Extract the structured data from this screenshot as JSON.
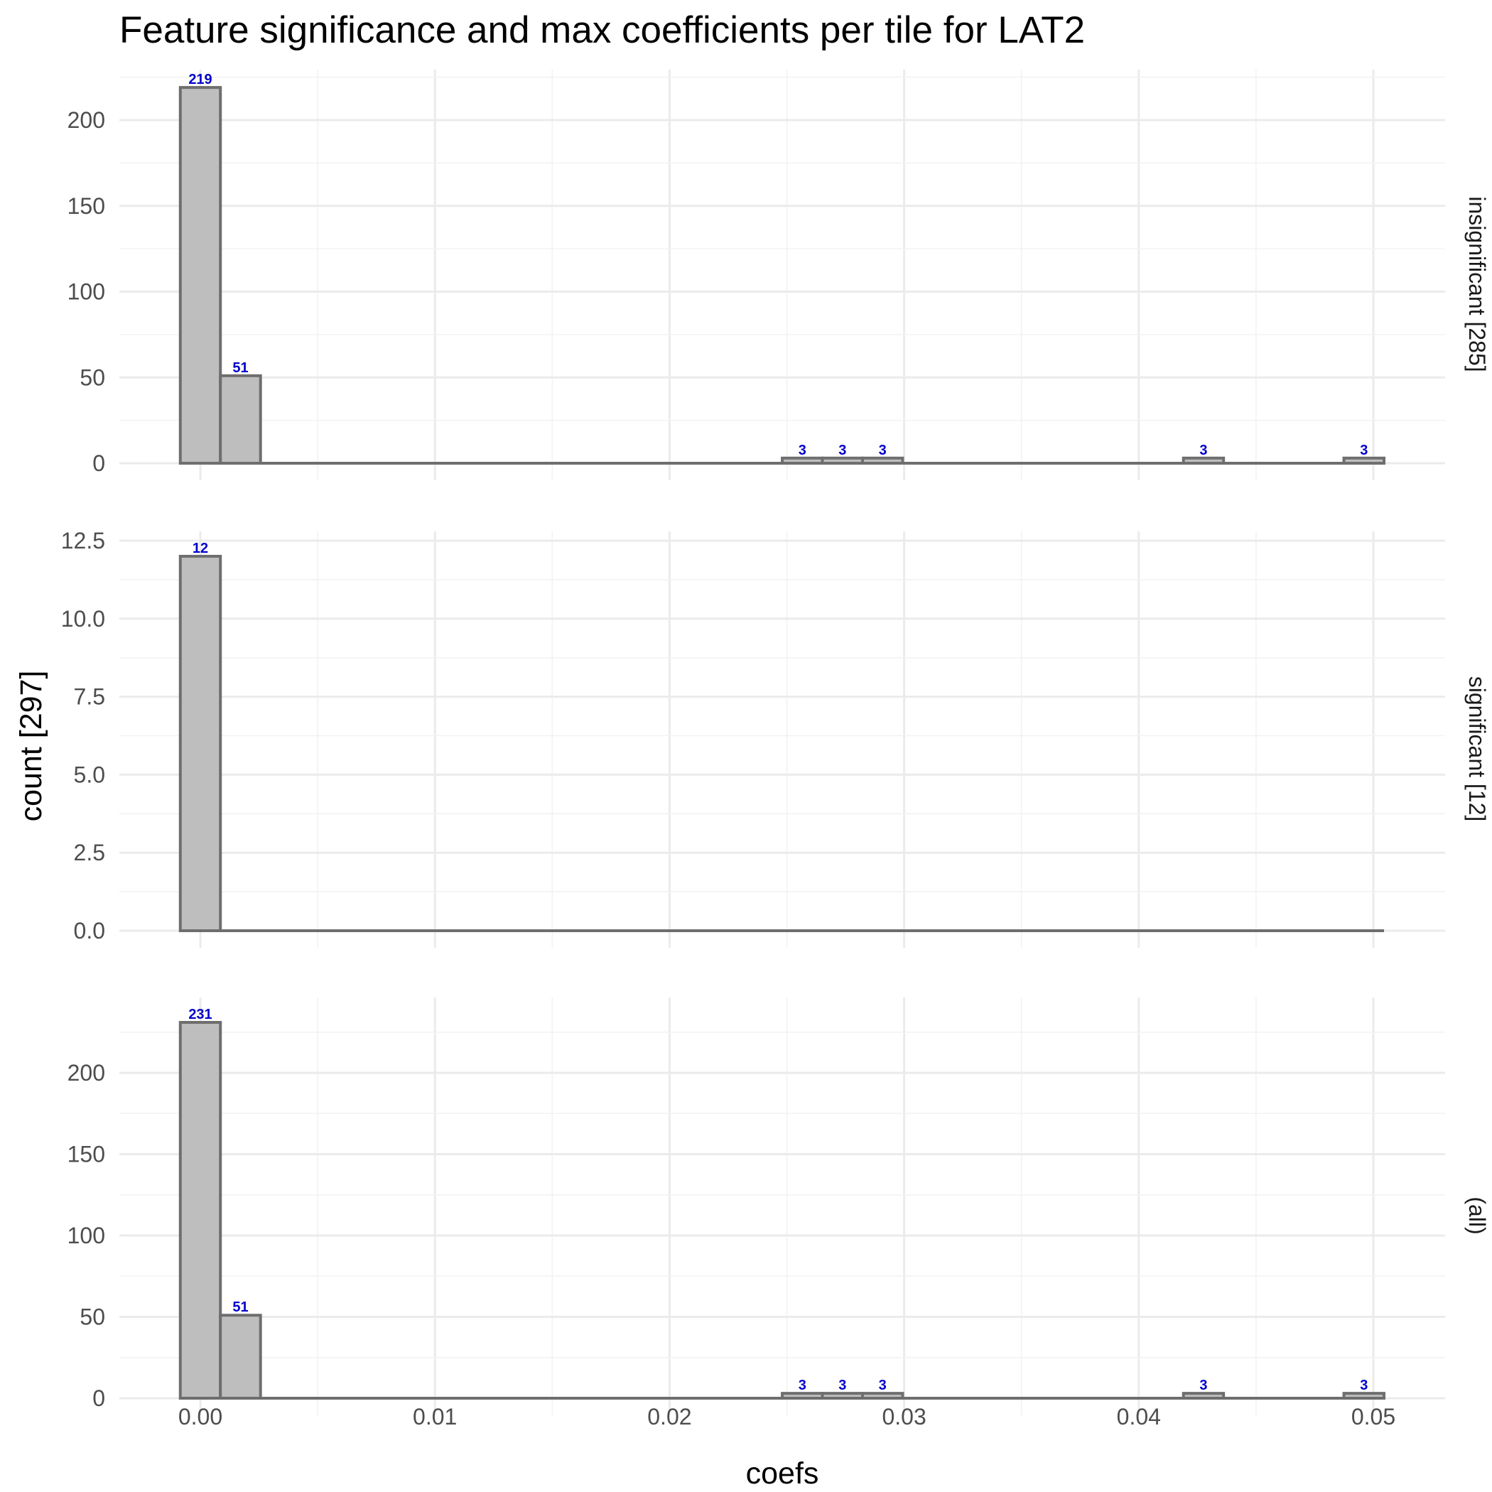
{
  "chart_data": {
    "type": "bar",
    "title": "Feature significance and max coefficients per tile for LAT2",
    "xlabel": "coefs",
    "ylabel": "count [297]",
    "xlim": [
      -0.0034,
      0.0532
    ],
    "x_ticks": [
      "0.00",
      "0.01",
      "0.02",
      "0.03",
      "0.04",
      "0.05"
    ],
    "x_tick_values": [
      0,
      0.01,
      0.02,
      0.03,
      0.04,
      0.05
    ],
    "bin_width": 0.00171,
    "grid": true,
    "panels": [
      {
        "strip_label": "insignificant [285]",
        "ylim": [
          0,
          230
        ],
        "y_ticks": [
          "0",
          "50",
          "100",
          "150",
          "200"
        ],
        "y_tick_values": [
          0,
          50,
          100,
          150,
          200
        ],
        "bins": [
          {
            "x": 0.0,
            "count": 219,
            "label": "219"
          },
          {
            "x": 0.00171,
            "count": 51,
            "label": "51"
          },
          {
            "x": 0.02566,
            "count": 3,
            "label": "3"
          },
          {
            "x": 0.02737,
            "count": 3,
            "label": "3"
          },
          {
            "x": 0.02908,
            "count": 3,
            "label": "3"
          },
          {
            "x": 0.04276,
            "count": 3,
            "label": "3"
          },
          {
            "x": 0.0496,
            "count": 3,
            "label": "3"
          }
        ]
      },
      {
        "strip_label": "significant [12]",
        "ylim": [
          0,
          13
        ],
        "y_ticks": [
          "0.0",
          "2.5",
          "5.0",
          "7.5",
          "10.0",
          "12.5"
        ],
        "y_tick_values": [
          0,
          2.5,
          5,
          7.5,
          10,
          12.5
        ],
        "bins": [
          {
            "x": 0.0,
            "count": 12,
            "label": "12"
          }
        ]
      },
      {
        "strip_label": "(all)",
        "ylim": [
          0,
          242
        ],
        "y_ticks": [
          "0",
          "50",
          "100",
          "150",
          "200"
        ],
        "y_tick_values": [
          0,
          50,
          100,
          150,
          200
        ],
        "bins": [
          {
            "x": 0.0,
            "count": 231,
            "label": "231"
          },
          {
            "x": 0.00171,
            "count": 51,
            "label": "51"
          },
          {
            "x": 0.02566,
            "count": 3,
            "label": "3"
          },
          {
            "x": 0.02737,
            "count": 3,
            "label": "3"
          },
          {
            "x": 0.02908,
            "count": 3,
            "label": "3"
          },
          {
            "x": 0.04276,
            "count": 3,
            "label": "3"
          },
          {
            "x": 0.0496,
            "count": 3,
            "label": "3"
          }
        ]
      }
    ]
  }
}
